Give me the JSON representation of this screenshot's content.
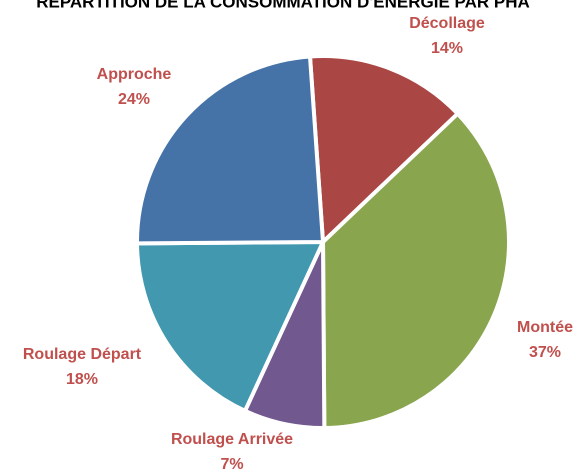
{
  "chart_data": {
    "type": "pie",
    "title": "RÉPARTITION DE LA CONSOMMATION D'ÉNERGIE PAR PHA",
    "categories": [
      "Décollage",
      "Montée",
      "Roulage Arrivée",
      "Roulage Départ",
      "Approche"
    ],
    "values": [
      14,
      37,
      7,
      18,
      24
    ],
    "value_labels": [
      "14%",
      "37%",
      "7%",
      "18%",
      "24%"
    ],
    "colors": [
      "#aa4643",
      "#89a54e",
      "#71588f",
      "#4198af",
      "#4572a7"
    ],
    "label_color": "#c0504d"
  }
}
